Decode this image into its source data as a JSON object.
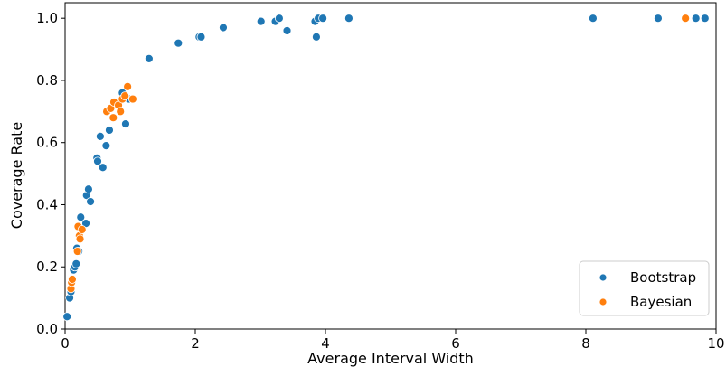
{
  "chart_data": {
    "type": "scatter",
    "title": "",
    "xlabel": "Average Interval Width",
    "ylabel": "Coverage Rate",
    "xlim": [
      0,
      10
    ],
    "ylim": [
      0,
      1.05
    ],
    "x_ticks": [
      "0",
      "2",
      "4",
      "6",
      "8",
      "10"
    ],
    "y_ticks": [
      "0.0",
      "0.2",
      "0.4",
      "0.6",
      "0.8",
      "1.0"
    ],
    "grid": false,
    "legend_position": "bottom-right",
    "series": [
      {
        "name": "Bootstrap",
        "color": "#1f77b4",
        "points": [
          [
            0.03,
            0.04
          ],
          [
            0.07,
            0.1
          ],
          [
            0.09,
            0.12
          ],
          [
            0.13,
            0.19
          ],
          [
            0.15,
            0.2
          ],
          [
            0.17,
            0.21
          ],
          [
            0.18,
            0.26
          ],
          [
            0.21,
            0.25
          ],
          [
            0.24,
            0.36
          ],
          [
            0.26,
            0.32
          ],
          [
            0.32,
            0.34
          ],
          [
            0.33,
            0.43
          ],
          [
            0.36,
            0.45
          ],
          [
            0.39,
            0.41
          ],
          [
            0.49,
            0.55
          ],
          [
            0.5,
            0.54
          ],
          [
            0.54,
            0.62
          ],
          [
            0.58,
            0.52
          ],
          [
            0.63,
            0.59
          ],
          [
            0.68,
            0.64
          ],
          [
            0.88,
            0.76
          ],
          [
            0.93,
            0.66
          ],
          [
            0.98,
            0.74
          ],
          [
            1.29,
            0.87
          ],
          [
            1.74,
            0.92
          ],
          [
            2.06,
            0.94
          ],
          [
            2.09,
            0.94
          ],
          [
            2.43,
            0.97
          ],
          [
            3.01,
            0.99
          ],
          [
            3.23,
            0.99
          ],
          [
            3.29,
            1.0
          ],
          [
            3.41,
            0.96
          ],
          [
            3.84,
            0.99
          ],
          [
            3.86,
            0.94
          ],
          [
            3.89,
            1.0
          ],
          [
            3.96,
            1.0
          ],
          [
            4.36,
            1.0
          ],
          [
            8.11,
            1.0
          ],
          [
            9.11,
            1.0
          ],
          [
            9.69,
            1.0
          ],
          [
            9.83,
            1.0
          ]
        ]
      },
      {
        "name": "Bayesian",
        "color": "#ff7f0e",
        "points": [
          [
            0.09,
            0.13
          ],
          [
            0.1,
            0.15
          ],
          [
            0.11,
            0.16
          ],
          [
            0.19,
            0.25
          ],
          [
            0.2,
            0.33
          ],
          [
            0.22,
            0.3
          ],
          [
            0.23,
            0.29
          ],
          [
            0.26,
            0.32
          ],
          [
            0.64,
            0.7
          ],
          [
            0.7,
            0.71
          ],
          [
            0.74,
            0.68
          ],
          [
            0.75,
            0.73
          ],
          [
            0.82,
            0.72
          ],
          [
            0.85,
            0.7
          ],
          [
            0.88,
            0.74
          ],
          [
            0.92,
            0.75
          ],
          [
            0.96,
            0.78
          ],
          [
            1.04,
            0.74
          ],
          [
            9.53,
            1.0
          ]
        ]
      }
    ]
  }
}
